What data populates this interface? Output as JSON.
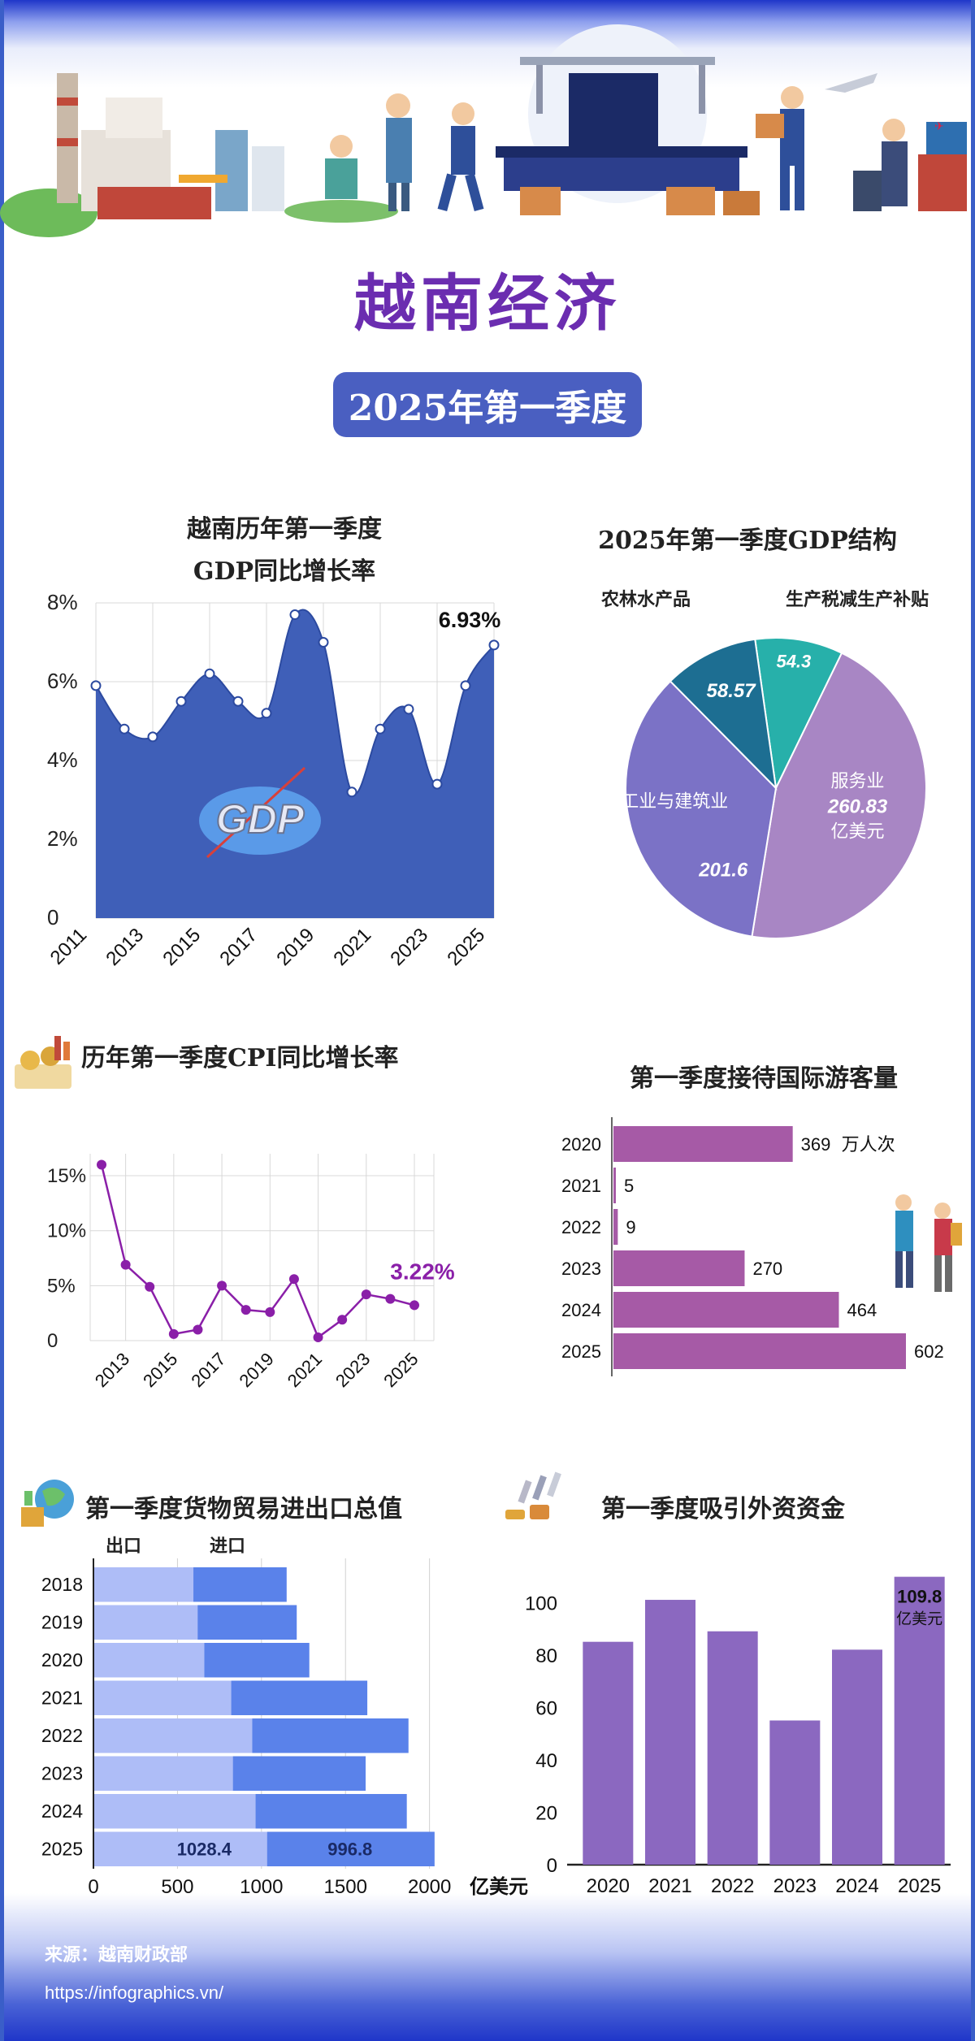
{
  "header": {
    "title": "越南经济",
    "subtitle": "2025年第一季度"
  },
  "gdp_growth": {
    "title_line1": "越南历年第一季度",
    "title_line2": "GDP同比增长率",
    "highlight_label": "6.93%",
    "badge_text": "GDP"
  },
  "gdp_structure": {
    "title": "2025年第一季度GDP结构",
    "slice_labels": {
      "agri": "农林水产品",
      "tax": "生产税减生产补贴",
      "industry": "工业与建筑业",
      "service": "服务业",
      "service_unit": "亿美元"
    }
  },
  "cpi": {
    "title": "历年第一季度CPI同比增长率",
    "highlight_label": "3.22%"
  },
  "tourism": {
    "title": "第一季度接待国际游客量",
    "unit": "万人次"
  },
  "trade": {
    "title": "第一季度货物贸易进出口总值",
    "legend_export": "出口",
    "legend_import": "进口",
    "axis_unit": "亿美元"
  },
  "fdi": {
    "title": "第一季度吸引外资资金",
    "highlight_unit": "亿美元"
  },
  "footer": {
    "source": "来源：越南财政部",
    "url": "https://infographics.vn/"
  },
  "colors": {
    "title_purple": "#6b2db0",
    "gdp_area": "#3f5fb8",
    "cpi_line": "#8a1fa8",
    "tourism_bar": "#a65aa6",
    "trade_export": "#aebdf7",
    "trade_import": "#5a82ea",
    "fdi_bar": "#8b68c0"
  },
  "icons": [
    "factory-illustration",
    "workers-illustration",
    "production-line-illustration",
    "delivery-illustration",
    "gdp-icon",
    "coins-icon",
    "tourists-icon",
    "globe-trade-icon",
    "investment-icon"
  ],
  "chart_data": [
    {
      "type": "area",
      "x": [
        2011,
        2012,
        2013,
        2014,
        2015,
        2016,
        2017,
        2018,
        2019,
        2020,
        2021,
        2022,
        2023,
        2024,
        2025
      ],
      "xticks": [
        "2011",
        "2013",
        "2015",
        "2017",
        "2019",
        "2021",
        "2023",
        "2025"
      ],
      "values": [
        5.9,
        4.8,
        4.6,
        5.5,
        6.2,
        5.5,
        5.2,
        7.7,
        7.0,
        3.2,
        4.8,
        5.3,
        3.4,
        5.9,
        6.93
      ],
      "ylim": [
        0,
        8
      ],
      "yticks": [
        "0",
        "2%",
        "4%",
        "6%",
        "8%"
      ],
      "grid": true
    },
    {
      "type": "pie",
      "labels": [
        "服务业",
        "工业与建筑业",
        "农林水产品",
        "生产税减生产补贴"
      ],
      "values": [
        260.83,
        201.6,
        58.57,
        54.3
      ],
      "value_labels": [
        "260.83",
        "201.6",
        "58.57",
        "54.3"
      ],
      "colors": [
        "#a886c4",
        "#7b72c6",
        "#1d6e92",
        "#27b0aa"
      ]
    },
    {
      "type": "line",
      "x": [
        2012,
        2013,
        2014,
        2015,
        2016,
        2017,
        2018,
        2019,
        2020,
        2021,
        2022,
        2023,
        2024,
        2025
      ],
      "xticks": [
        "2013",
        "2015",
        "2017",
        "2019",
        "2021",
        "2023",
        "2025"
      ],
      "values": [
        16.0,
        6.9,
        4.9,
        0.6,
        1.0,
        5.0,
        2.8,
        2.6,
        5.6,
        0.3,
        1.9,
        4.2,
        3.8,
        3.22
      ],
      "ylim": [
        0,
        17
      ],
      "yticks": [
        "0",
        "5%",
        "10%",
        "15%"
      ],
      "grid": true
    },
    {
      "type": "bar",
      "orientation": "horizontal",
      "categories": [
        "2020",
        "2021",
        "2022",
        "2023",
        "2024",
        "2025"
      ],
      "values": [
        369,
        5,
        9,
        270,
        464,
        602
      ],
      "value_labels": [
        "369",
        "5",
        "9",
        "270",
        "464",
        "602"
      ]
    },
    {
      "type": "bar",
      "orientation": "horizontal",
      "stacked": true,
      "categories": [
        "2018",
        "2019",
        "2020",
        "2021",
        "2022",
        "2023",
        "2024",
        "2025"
      ],
      "series": [
        {
          "name": "出口",
          "values": [
            590,
            615,
            655,
            815,
            940,
            825,
            960,
            1028.4
          ]
        },
        {
          "name": "进口",
          "values": [
            555,
            590,
            625,
            810,
            930,
            790,
            900,
            996.8
          ]
        }
      ],
      "value_labels": [
        "1028.4",
        "996.8"
      ],
      "xlim": [
        0,
        2200
      ],
      "xticks": [
        "0",
        "500",
        "1000",
        "1500",
        "2000"
      ],
      "grid": true
    },
    {
      "type": "bar",
      "categories": [
        "2020",
        "2021",
        "2022",
        "2023",
        "2024",
        "2025"
      ],
      "values": [
        85,
        101,
        89,
        55,
        82,
        109.8
      ],
      "ylim": [
        0,
        110
      ],
      "yticks": [
        "0",
        "20",
        "40",
        "60",
        "80",
        "100"
      ],
      "highlight_label": "109.8"
    }
  ]
}
